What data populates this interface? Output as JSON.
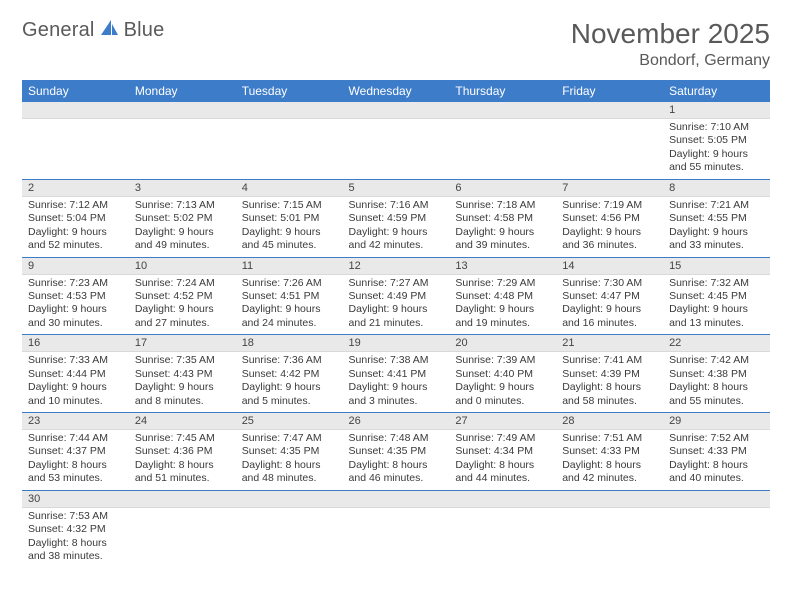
{
  "logo": {
    "text1": "General",
    "text2": "Blue"
  },
  "title": "November 2025",
  "location": "Bondorf, Germany",
  "accent_color": "#3d7cc9",
  "gray_bg": "#e9e9e9",
  "text_color": "#595959",
  "daynames": [
    "Sunday",
    "Monday",
    "Tuesday",
    "Wednesday",
    "Thursday",
    "Friday",
    "Saturday"
  ],
  "weeks": [
    [
      null,
      null,
      null,
      null,
      null,
      null,
      {
        "n": "1",
        "sr": "Sunrise: 7:10 AM",
        "ss": "Sunset: 5:05 PM",
        "dl": "Daylight: 9 hours and 55 minutes."
      }
    ],
    [
      {
        "n": "2",
        "sr": "Sunrise: 7:12 AM",
        "ss": "Sunset: 5:04 PM",
        "dl": "Daylight: 9 hours and 52 minutes."
      },
      {
        "n": "3",
        "sr": "Sunrise: 7:13 AM",
        "ss": "Sunset: 5:02 PM",
        "dl": "Daylight: 9 hours and 49 minutes."
      },
      {
        "n": "4",
        "sr": "Sunrise: 7:15 AM",
        "ss": "Sunset: 5:01 PM",
        "dl": "Daylight: 9 hours and 45 minutes."
      },
      {
        "n": "5",
        "sr": "Sunrise: 7:16 AM",
        "ss": "Sunset: 4:59 PM",
        "dl": "Daylight: 9 hours and 42 minutes."
      },
      {
        "n": "6",
        "sr": "Sunrise: 7:18 AM",
        "ss": "Sunset: 4:58 PM",
        "dl": "Daylight: 9 hours and 39 minutes."
      },
      {
        "n": "7",
        "sr": "Sunrise: 7:19 AM",
        "ss": "Sunset: 4:56 PM",
        "dl": "Daylight: 9 hours and 36 minutes."
      },
      {
        "n": "8",
        "sr": "Sunrise: 7:21 AM",
        "ss": "Sunset: 4:55 PM",
        "dl": "Daylight: 9 hours and 33 minutes."
      }
    ],
    [
      {
        "n": "9",
        "sr": "Sunrise: 7:23 AM",
        "ss": "Sunset: 4:53 PM",
        "dl": "Daylight: 9 hours and 30 minutes."
      },
      {
        "n": "10",
        "sr": "Sunrise: 7:24 AM",
        "ss": "Sunset: 4:52 PM",
        "dl": "Daylight: 9 hours and 27 minutes."
      },
      {
        "n": "11",
        "sr": "Sunrise: 7:26 AM",
        "ss": "Sunset: 4:51 PM",
        "dl": "Daylight: 9 hours and 24 minutes."
      },
      {
        "n": "12",
        "sr": "Sunrise: 7:27 AM",
        "ss": "Sunset: 4:49 PM",
        "dl": "Daylight: 9 hours and 21 minutes."
      },
      {
        "n": "13",
        "sr": "Sunrise: 7:29 AM",
        "ss": "Sunset: 4:48 PM",
        "dl": "Daylight: 9 hours and 19 minutes."
      },
      {
        "n": "14",
        "sr": "Sunrise: 7:30 AM",
        "ss": "Sunset: 4:47 PM",
        "dl": "Daylight: 9 hours and 16 minutes."
      },
      {
        "n": "15",
        "sr": "Sunrise: 7:32 AM",
        "ss": "Sunset: 4:45 PM",
        "dl": "Daylight: 9 hours and 13 minutes."
      }
    ],
    [
      {
        "n": "16",
        "sr": "Sunrise: 7:33 AM",
        "ss": "Sunset: 4:44 PM",
        "dl": "Daylight: 9 hours and 10 minutes."
      },
      {
        "n": "17",
        "sr": "Sunrise: 7:35 AM",
        "ss": "Sunset: 4:43 PM",
        "dl": "Daylight: 9 hours and 8 minutes."
      },
      {
        "n": "18",
        "sr": "Sunrise: 7:36 AM",
        "ss": "Sunset: 4:42 PM",
        "dl": "Daylight: 9 hours and 5 minutes."
      },
      {
        "n": "19",
        "sr": "Sunrise: 7:38 AM",
        "ss": "Sunset: 4:41 PM",
        "dl": "Daylight: 9 hours and 3 minutes."
      },
      {
        "n": "20",
        "sr": "Sunrise: 7:39 AM",
        "ss": "Sunset: 4:40 PM",
        "dl": "Daylight: 9 hours and 0 minutes."
      },
      {
        "n": "21",
        "sr": "Sunrise: 7:41 AM",
        "ss": "Sunset: 4:39 PM",
        "dl": "Daylight: 8 hours and 58 minutes."
      },
      {
        "n": "22",
        "sr": "Sunrise: 7:42 AM",
        "ss": "Sunset: 4:38 PM",
        "dl": "Daylight: 8 hours and 55 minutes."
      }
    ],
    [
      {
        "n": "23",
        "sr": "Sunrise: 7:44 AM",
        "ss": "Sunset: 4:37 PM",
        "dl": "Daylight: 8 hours and 53 minutes."
      },
      {
        "n": "24",
        "sr": "Sunrise: 7:45 AM",
        "ss": "Sunset: 4:36 PM",
        "dl": "Daylight: 8 hours and 51 minutes."
      },
      {
        "n": "25",
        "sr": "Sunrise: 7:47 AM",
        "ss": "Sunset: 4:35 PM",
        "dl": "Daylight: 8 hours and 48 minutes."
      },
      {
        "n": "26",
        "sr": "Sunrise: 7:48 AM",
        "ss": "Sunset: 4:35 PM",
        "dl": "Daylight: 8 hours and 46 minutes."
      },
      {
        "n": "27",
        "sr": "Sunrise: 7:49 AM",
        "ss": "Sunset: 4:34 PM",
        "dl": "Daylight: 8 hours and 44 minutes."
      },
      {
        "n": "28",
        "sr": "Sunrise: 7:51 AM",
        "ss": "Sunset: 4:33 PM",
        "dl": "Daylight: 8 hours and 42 minutes."
      },
      {
        "n": "29",
        "sr": "Sunrise: 7:52 AM",
        "ss": "Sunset: 4:33 PM",
        "dl": "Daylight: 8 hours and 40 minutes."
      }
    ],
    [
      {
        "n": "30",
        "sr": "Sunrise: 7:53 AM",
        "ss": "Sunset: 4:32 PM",
        "dl": "Daylight: 8 hours and 38 minutes."
      },
      null,
      null,
      null,
      null,
      null,
      null
    ]
  ]
}
